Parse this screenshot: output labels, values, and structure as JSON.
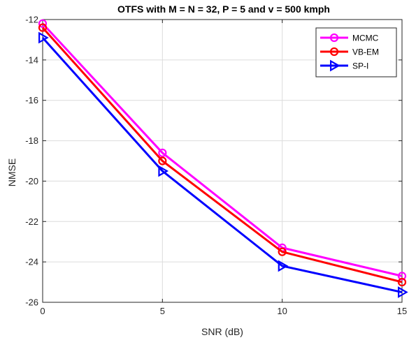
{
  "chart_data": {
    "type": "line",
    "title": "OTFS with M = N = 32, P = 5 and v = 500 kmph",
    "xlabel": "SNR (dB)",
    "ylabel": "NMSE",
    "xlim": [
      0,
      15
    ],
    "ylim": [
      -26,
      -12
    ],
    "xticks": [
      0,
      5,
      10,
      15
    ],
    "yticks": [
      -12,
      -14,
      -16,
      -18,
      -20,
      -22,
      -24,
      -26
    ],
    "grid": true,
    "legend_position": "top-right",
    "x": [
      0,
      5,
      10,
      15
    ],
    "series": [
      {
        "name": "MCMC",
        "values": [
          -12.2,
          -18.6,
          -23.3,
          -24.7
        ],
        "color": "#ff00ff",
        "marker": "circle"
      },
      {
        "name": "VB-EM",
        "values": [
          -12.4,
          -19.0,
          -23.5,
          -25.0
        ],
        "color": "#ff0000",
        "marker": "circle"
      },
      {
        "name": "SP-I",
        "values": [
          -12.9,
          -19.5,
          -24.2,
          -25.5
        ],
        "color": "#0000ff",
        "marker": "triangle-right"
      }
    ]
  }
}
